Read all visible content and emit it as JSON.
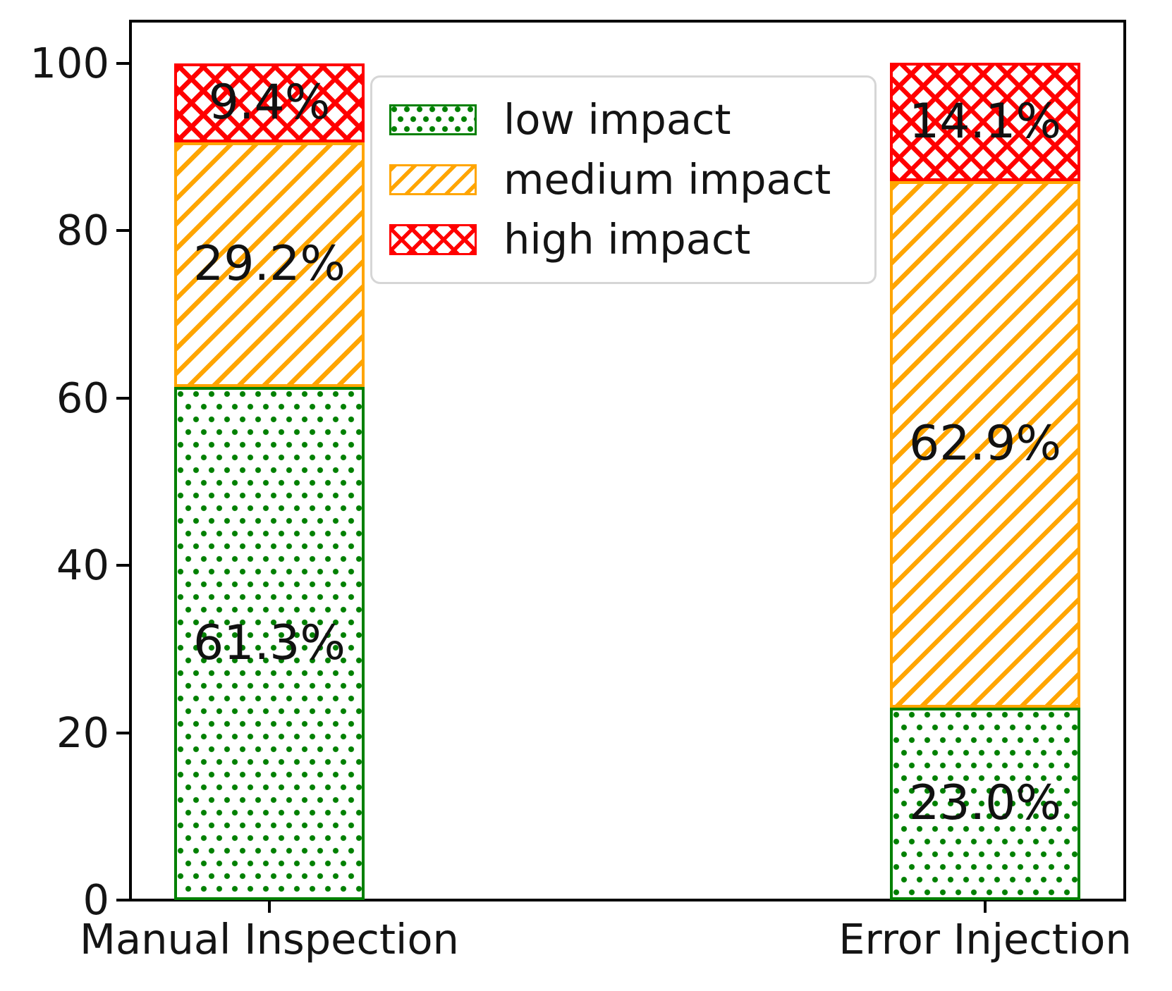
{
  "chart_data": {
    "type": "bar",
    "stacked": true,
    "orientation": "vertical",
    "categories": [
      "Manual Inspection",
      "Error Injection"
    ],
    "series": [
      {
        "name": "low impact",
        "hatch": "dots",
        "color": "#008000",
        "values": [
          61.3,
          23.0
        ]
      },
      {
        "name": "medium impact",
        "hatch": "diag",
        "color": "#FFA500",
        "values": [
          29.2,
          62.9
        ]
      },
      {
        "name": "high impact",
        "hatch": "cross",
        "color": "#FF0000",
        "values": [
          9.4,
          14.1
        ]
      }
    ],
    "value_labels": [
      [
        "61.3%",
        "29.2%",
        "9.4%"
      ],
      [
        "23.0%",
        "62.9%",
        "14.1%"
      ]
    ],
    "ylim": [
      0,
      100
    ],
    "ytick_labels": [
      "0",
      "20",
      "40",
      "60",
      "80",
      "100"
    ],
    "grid": false,
    "legend": {
      "position": "upper-left-inside",
      "items": [
        "low impact",
        "medium impact",
        "high impact"
      ]
    }
  }
}
